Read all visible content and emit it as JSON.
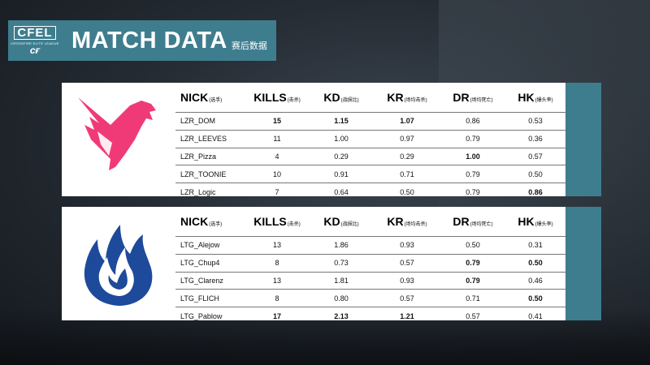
{
  "header": {
    "logo_main": "CFEL",
    "logo_sub": "CROSSFIRE ELITE LEAGUE",
    "logo_ff": "ᴄғ",
    "title": "MATCH DATA",
    "subtitle": "赛后数据"
  },
  "columns": [
    {
      "key": "nick",
      "label": "NICK",
      "sub": "(选手)"
    },
    {
      "key": "kills",
      "label": "KILLS",
      "sub": "(击杀)"
    },
    {
      "key": "kd",
      "label": "KD",
      "sub": "(战损比)"
    },
    {
      "key": "kr",
      "label": "KR",
      "sub": "(场均击杀)"
    },
    {
      "key": "dr",
      "label": "DR",
      "sub": "(场均死亡)"
    },
    {
      "key": "hk",
      "label": "HK",
      "sub": "(爆头率)"
    }
  ],
  "team_a": {
    "name": "LZR",
    "logo_icon": "phoenix-logo-icon",
    "logo_color": "#f03a78",
    "players": [
      {
        "nick": "LZR_DOM",
        "kills": "15",
        "kd": "1.15",
        "kr": "1.07",
        "dr": "0.86",
        "hk": "0.53"
      },
      {
        "nick": "LZR_LEEVES",
        "kills": "11",
        "kd": "1.00",
        "kr": "0.97",
        "dr": "0.79",
        "hk": "0.36"
      },
      {
        "nick": "LZR_Pizza",
        "kills": "4",
        "kd": "0.29",
        "kr": "0.29",
        "dr": "1.00",
        "hk": "0.57"
      },
      {
        "nick": "LZR_TOONIE",
        "kills": "10",
        "kd": "0.91",
        "kr": "0.71",
        "dr": "0.79",
        "hk": "0.50"
      },
      {
        "nick": "LZR_Logic",
        "kills": "7",
        "kd": "0.64",
        "kr": "0.50",
        "dr": "0.79",
        "hk": "0.86"
      }
    ]
  },
  "team_b": {
    "name": "LTG",
    "logo_icon": "blue-flame-logo-icon",
    "logo_color": "#1d4a9a",
    "players": [
      {
        "nick": "LTG_Alejow",
        "kills": "13",
        "kd": "1.86",
        "kr": "0.93",
        "dr": "0.50",
        "hk": "0.31"
      },
      {
        "nick": "LTG_Chup4",
        "kills": "8",
        "kd": "0.73",
        "kr": "0.57",
        "dr": "0.79",
        "hk": "0.50"
      },
      {
        "nick": "LTG_Clarenz",
        "kills": "13",
        "kd": "1.81",
        "kr": "0.93",
        "dr": "0.79",
        "hk": "0.46"
      },
      {
        "nick": "LTG_FLICH",
        "kills": "8",
        "kd": "0.80",
        "kr": "0.57",
        "dr": "0.71",
        "hk": "0.50"
      },
      {
        "nick": "LTG_Pablow",
        "kills": "17",
        "kd": "2.13",
        "kr": "1.21",
        "dr": "0.57",
        "hk": "0.41"
      }
    ]
  },
  "colors": {
    "accent": "#3e7d8e"
  }
}
